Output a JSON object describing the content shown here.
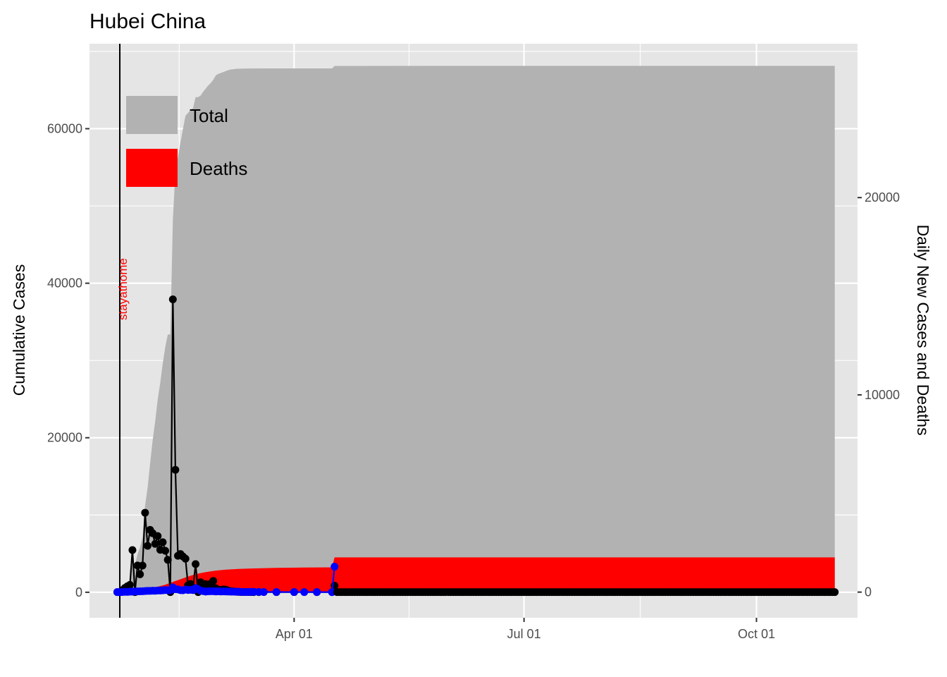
{
  "chart_data": {
    "type": "area",
    "title": "Hubei China",
    "ylabel": "Cumulative Cases",
    "y2label": "Daily New Cases and Deaths",
    "x_ticks": [
      {
        "date": "2020-04-01",
        "label": "Apr 01"
      },
      {
        "date": "2020-07-01",
        "label": "Jul 01"
      },
      {
        "date": "2020-10-01",
        "label": "Oct 01"
      }
    ],
    "xlim": [
      "2020-01-11",
      "2020-11-10"
    ],
    "ylim": [
      -3300,
      71000
    ],
    "y_ticks": [
      0,
      20000,
      40000,
      60000
    ],
    "y2lim": [
      -1300,
      27800
    ],
    "y2_ticks": [
      0,
      10000,
      20000
    ],
    "legend": {
      "position": "top-left",
      "items": [
        {
          "label": "Total",
          "color": "#b2b2b2"
        },
        {
          "label": "Deaths",
          "color": "#ff0000"
        }
      ]
    },
    "annotation": {
      "date": "2020-01-23",
      "label": "stayathome",
      "color": "#ff0000"
    },
    "colors": {
      "panel": "#e5e5e5",
      "grid": "#ffffff",
      "total_area": "#b2b2b2",
      "deaths_area": "#ff0000",
      "daily_cases": "#000000",
      "daily_deaths": "#0000ff"
    },
    "series": [
      {
        "name": "Total",
        "axis": "left",
        "points": [
          [
            "2020-01-22",
            444
          ],
          [
            "2020-01-23",
            444
          ],
          [
            "2020-01-24",
            549
          ],
          [
            "2020-01-25",
            761
          ],
          [
            "2020-01-26",
            1058
          ],
          [
            "2020-01-27",
            1423
          ],
          [
            "2020-01-28",
            3554
          ],
          [
            "2020-01-29",
            3554
          ],
          [
            "2020-01-30",
            4903
          ],
          [
            "2020-01-31",
            5806
          ],
          [
            "2020-02-01",
            7153
          ],
          [
            "2020-02-02",
            11177
          ],
          [
            "2020-02-03",
            13522
          ],
          [
            "2020-02-04",
            16678
          ],
          [
            "2020-02-05",
            19665
          ],
          [
            "2020-02-06",
            22112
          ],
          [
            "2020-02-07",
            24953
          ],
          [
            "2020-02-08",
            27100
          ],
          [
            "2020-02-09",
            29631
          ],
          [
            "2020-02-10",
            31728
          ],
          [
            "2020-02-11",
            33366
          ],
          [
            "2020-02-12",
            33366
          ],
          [
            "2020-02-13",
            48206
          ],
          [
            "2020-02-14",
            54406
          ],
          [
            "2020-02-15",
            56249
          ],
          [
            "2020-02-16",
            58182
          ],
          [
            "2020-02-17",
            59989
          ],
          [
            "2020-02-18",
            61682
          ],
          [
            "2020-02-19",
            62031
          ],
          [
            "2020-02-20",
            62442
          ],
          [
            "2020-02-21",
            62662
          ],
          [
            "2020-02-22",
            64084
          ],
          [
            "2020-02-23",
            64084
          ],
          [
            "2020-02-24",
            64287
          ],
          [
            "2020-02-25",
            64786
          ],
          [
            "2020-02-26",
            65187
          ],
          [
            "2020-02-27",
            65596
          ],
          [
            "2020-02-28",
            65914
          ],
          [
            "2020-02-29",
            66337
          ],
          [
            "2020-03-01",
            66907
          ],
          [
            "2020-03-02",
            67103
          ],
          [
            "2020-03-03",
            67217
          ],
          [
            "2020-03-04",
            67332
          ],
          [
            "2020-03-05",
            67466
          ],
          [
            "2020-03-06",
            67592
          ],
          [
            "2020-03-07",
            67666
          ],
          [
            "2020-03-08",
            67707
          ],
          [
            "2020-03-09",
            67743
          ],
          [
            "2020-03-10",
            67760
          ],
          [
            "2020-03-12",
            67781
          ],
          [
            "2020-03-15",
            67794
          ],
          [
            "2020-03-20",
            67800
          ],
          [
            "2020-03-31",
            67801
          ],
          [
            "2020-04-16",
            67803
          ],
          [
            "2020-04-17",
            68128
          ],
          [
            "2020-11-01",
            68139
          ]
        ]
      },
      {
        "name": "Deaths",
        "axis": "left",
        "points": [
          [
            "2020-01-22",
            17
          ],
          [
            "2020-01-26",
            52
          ],
          [
            "2020-01-29",
            125
          ],
          [
            "2020-02-01",
            294
          ],
          [
            "2020-02-05",
            549
          ],
          [
            "2020-02-10",
            974
          ],
          [
            "2020-02-14",
            1457
          ],
          [
            "2020-02-18",
            1921
          ],
          [
            "2020-02-22",
            2346
          ],
          [
            "2020-02-26",
            2615
          ],
          [
            "2020-03-01",
            2803
          ],
          [
            "2020-03-05",
            2931
          ],
          [
            "2020-03-10",
            3024
          ],
          [
            "2020-03-15",
            3075
          ],
          [
            "2020-03-25",
            3160
          ],
          [
            "2020-04-05",
            3199
          ],
          [
            "2020-04-16",
            3222
          ],
          [
            "2020-04-17",
            4512
          ],
          [
            "2020-11-01",
            4512
          ]
        ]
      },
      {
        "name": "Daily New Cases",
        "axis": "right",
        "points": [
          [
            "2020-01-22",
            0
          ],
          [
            "2020-01-23",
            0
          ],
          [
            "2020-01-24",
            105
          ],
          [
            "2020-01-25",
            212
          ],
          [
            "2020-01-26",
            297
          ],
          [
            "2020-01-27",
            365
          ],
          [
            "2020-01-28",
            2131
          ],
          [
            "2020-01-29",
            0
          ],
          [
            "2020-01-30",
            1349
          ],
          [
            "2020-01-31",
            903
          ],
          [
            "2020-02-01",
            1347
          ],
          [
            "2020-02-02",
            4024
          ],
          [
            "2020-02-03",
            2345
          ],
          [
            "2020-02-04",
            3156
          ],
          [
            "2020-02-05",
            2987
          ],
          [
            "2020-02-06",
            2447
          ],
          [
            "2020-02-07",
            2841
          ],
          [
            "2020-02-08",
            2147
          ],
          [
            "2020-02-09",
            2531
          ],
          [
            "2020-02-10",
            2097
          ],
          [
            "2020-02-11",
            1638
          ],
          [
            "2020-02-12",
            0
          ],
          [
            "2020-02-13",
            14840
          ],
          [
            "2020-02-14",
            6200
          ],
          [
            "2020-02-15",
            1843
          ],
          [
            "2020-02-16",
            1933
          ],
          [
            "2020-02-17",
            1807
          ],
          [
            "2020-02-18",
            1693
          ],
          [
            "2020-02-19",
            349
          ],
          [
            "2020-02-20",
            411
          ],
          [
            "2020-02-21",
            220
          ],
          [
            "2020-02-22",
            1422
          ],
          [
            "2020-02-23",
            0
          ],
          [
            "2020-02-24",
            499
          ],
          [
            "2020-02-25",
            401
          ],
          [
            "2020-02-26",
            409
          ],
          [
            "2020-02-27",
            318
          ],
          [
            "2020-02-28",
            423
          ],
          [
            "2020-02-29",
            570
          ],
          [
            "2020-03-01",
            196
          ],
          [
            "2020-03-02",
            114
          ],
          [
            "2020-03-03",
            115
          ],
          [
            "2020-03-04",
            134
          ],
          [
            "2020-03-05",
            126
          ],
          [
            "2020-03-06",
            74
          ],
          [
            "2020-03-07",
            41
          ],
          [
            "2020-03-08",
            36
          ],
          [
            "2020-03-09",
            17
          ],
          [
            "2020-03-10",
            8
          ],
          [
            "2020-03-11",
            5
          ],
          [
            "2020-03-12",
            4
          ],
          [
            "2020-03-13",
            4
          ],
          [
            "2020-03-14",
            4
          ],
          [
            "2020-03-15",
            3
          ],
          [
            "2020-03-16",
            1
          ],
          [
            "2020-03-18",
            0
          ],
          [
            "2020-03-25",
            0
          ],
          [
            "2020-04-01",
            0
          ],
          [
            "2020-04-10",
            0
          ],
          [
            "2020-04-16",
            0
          ],
          [
            "2020-04-17",
            325
          ]
        ],
        "tail": {
          "from": "2020-04-18",
          "to": "2020-11-01",
          "value": 0
        }
      },
      {
        "name": "Daily New Deaths",
        "axis": "right",
        "points": [
          [
            "2020-01-22",
            0
          ],
          [
            "2020-01-23",
            0
          ],
          [
            "2020-01-24",
            7
          ],
          [
            "2020-01-25",
            16
          ],
          [
            "2020-01-26",
            12
          ],
          [
            "2020-01-27",
            24
          ],
          [
            "2020-01-28",
            24
          ],
          [
            "2020-01-29",
            37
          ],
          [
            "2020-01-30",
            37
          ],
          [
            "2020-01-31",
            42
          ],
          [
            "2020-02-01",
            45
          ],
          [
            "2020-02-02",
            56
          ],
          [
            "2020-02-03",
            64
          ],
          [
            "2020-02-04",
            65
          ],
          [
            "2020-02-05",
            70
          ],
          [
            "2020-02-06",
            69
          ],
          [
            "2020-02-07",
            81
          ],
          [
            "2020-02-08",
            81
          ],
          [
            "2020-02-09",
            91
          ],
          [
            "2020-02-10",
            103
          ],
          [
            "2020-02-11",
            94
          ],
          [
            "2020-02-12",
            94
          ],
          [
            "2020-02-13",
            242
          ],
          [
            "2020-02-14",
            147
          ],
          [
            "2020-02-15",
            139
          ],
          [
            "2020-02-16",
            100
          ],
          [
            "2020-02-17",
            93
          ],
          [
            "2020-02-18",
            132
          ],
          [
            "2020-02-19",
            108
          ],
          [
            "2020-02-20",
            115
          ],
          [
            "2020-02-21",
            102
          ],
          [
            "2020-02-22",
            202
          ],
          [
            "2020-02-23",
            149
          ],
          [
            "2020-02-24",
            68
          ],
          [
            "2020-02-25",
            52
          ],
          [
            "2020-02-26",
            26
          ],
          [
            "2020-02-27",
            41
          ],
          [
            "2020-02-28",
            47
          ],
          [
            "2020-02-29",
            45
          ],
          [
            "2020-03-01",
            34
          ],
          [
            "2020-03-02",
            42
          ],
          [
            "2020-03-03",
            31
          ],
          [
            "2020-03-04",
            38
          ],
          [
            "2020-03-05",
            31
          ],
          [
            "2020-03-06",
            29
          ],
          [
            "2020-03-07",
            22
          ],
          [
            "2020-03-08",
            24
          ],
          [
            "2020-03-09",
            17
          ],
          [
            "2020-03-10",
            22
          ],
          [
            "2020-03-11",
            10
          ],
          [
            "2020-03-12",
            8
          ],
          [
            "2020-03-13",
            6
          ],
          [
            "2020-03-14",
            10
          ],
          [
            "2020-03-15",
            12
          ],
          [
            "2020-03-16",
            13
          ],
          [
            "2020-03-18",
            8
          ],
          [
            "2020-03-20",
            3
          ],
          [
            "2020-03-25",
            5
          ],
          [
            "2020-04-01",
            3
          ],
          [
            "2020-04-05",
            2
          ],
          [
            "2020-04-10",
            1
          ],
          [
            "2020-04-16",
            0
          ],
          [
            "2020-04-17",
            1290
          ]
        ]
      }
    ]
  }
}
